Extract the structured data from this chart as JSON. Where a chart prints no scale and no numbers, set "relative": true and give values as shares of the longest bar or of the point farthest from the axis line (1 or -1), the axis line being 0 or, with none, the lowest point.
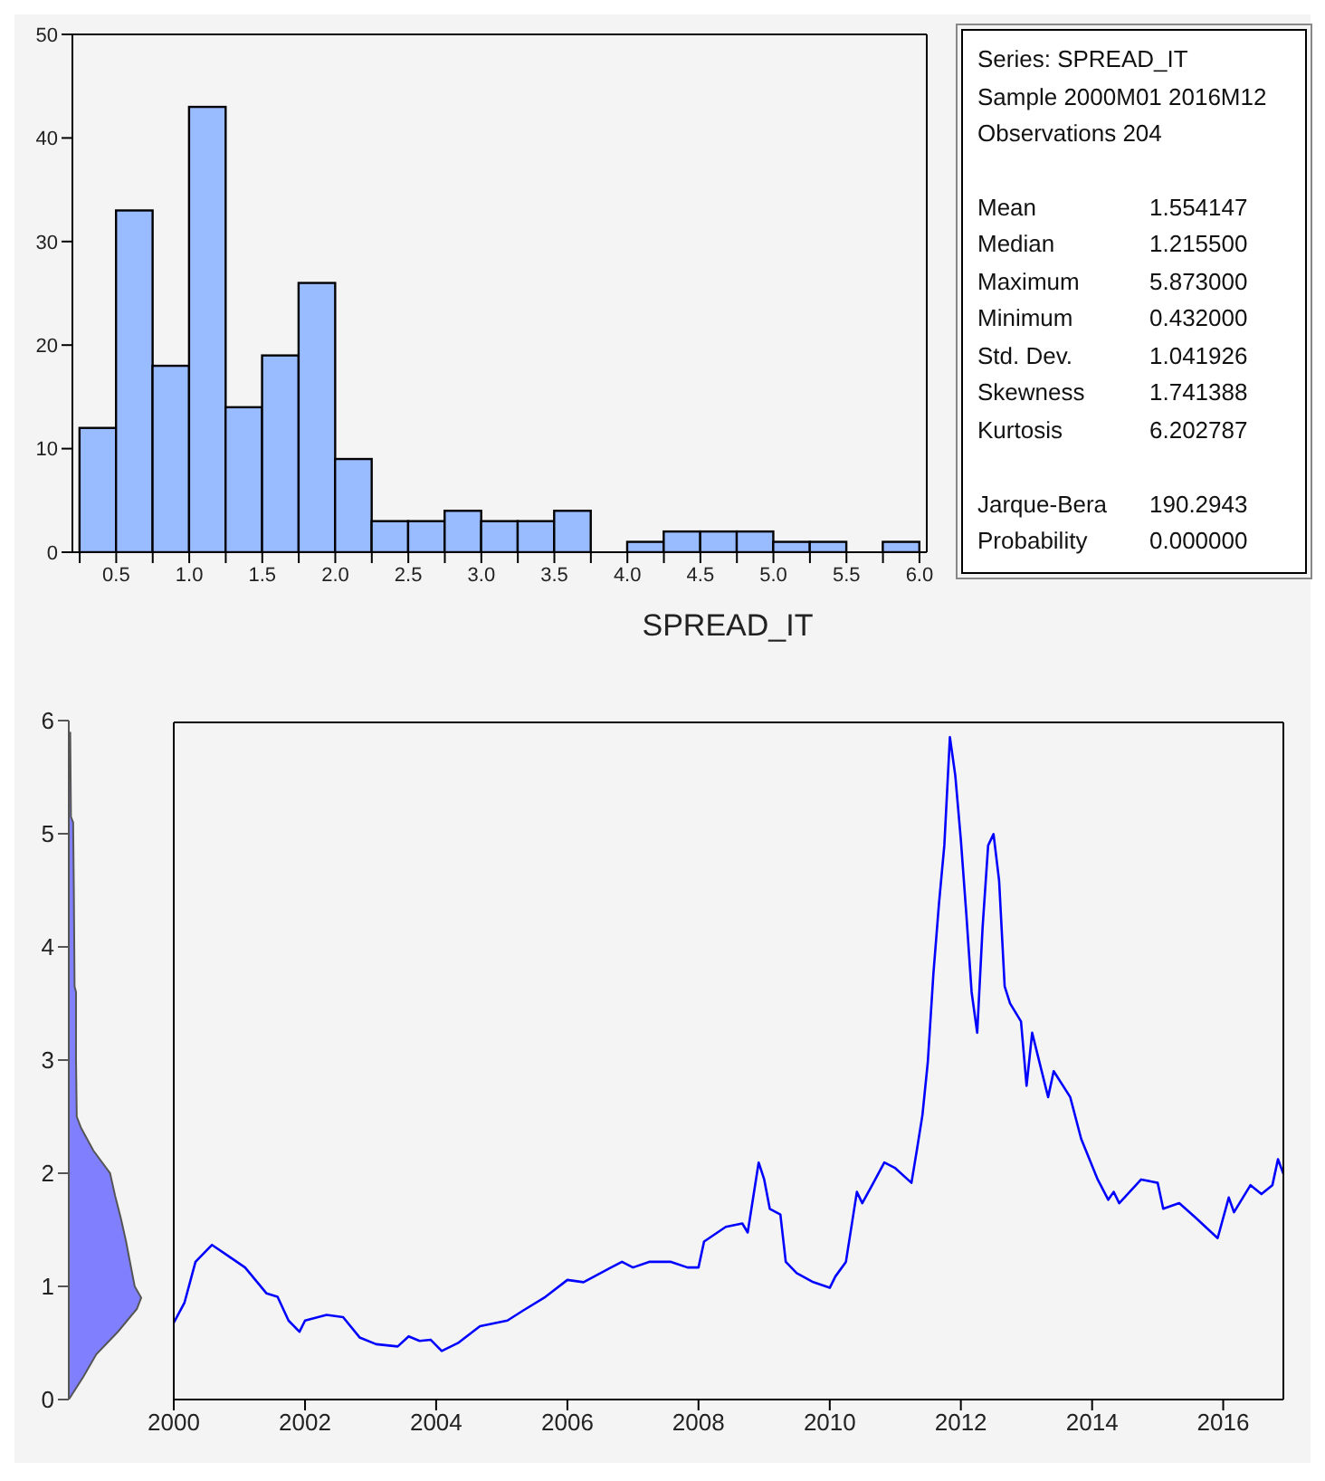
{
  "chart_data": [
    {
      "type": "histogram",
      "color": "#99bbff",
      "bins": [
        0.25,
        0.5,
        0.75,
        1.0,
        1.25,
        1.5,
        1.75,
        2.0,
        2.25,
        2.5,
        2.75,
        3.0,
        3.25,
        3.5,
        3.75,
        4.0,
        4.25,
        4.5,
        4.75,
        5.0,
        5.25,
        5.5,
        5.75,
        6.0
      ],
      "values": [
        12,
        33,
        18,
        43,
        14,
        19,
        26,
        9,
        3,
        3,
        4,
        3,
        3,
        4,
        0,
        1,
        2,
        2,
        2,
        1,
        1,
        0,
        1
      ],
      "xlim": [
        0.2,
        6.05
      ],
      "xticks": [
        {
          "value": 0.25,
          "label": null
        },
        {
          "value": 0.5,
          "label": "0.5"
        },
        {
          "value": 0.75,
          "label": null
        },
        {
          "value": 1.0,
          "label": "1.0"
        },
        {
          "value": 1.25,
          "label": null
        },
        {
          "value": 1.5,
          "label": "1.5"
        },
        {
          "value": 1.75,
          "label": null
        },
        {
          "value": 2.0,
          "label": "2.0"
        },
        {
          "value": 2.25,
          "label": null
        },
        {
          "value": 2.5,
          "label": "2.5"
        },
        {
          "value": 2.75,
          "label": null
        },
        {
          "value": 3.0,
          "label": "3.0"
        },
        {
          "value": 3.25,
          "label": null
        },
        {
          "value": 3.5,
          "label": "3.5"
        },
        {
          "value": 3.75,
          "label": null
        },
        {
          "value": 4.0,
          "label": "4.0"
        },
        {
          "value": 4.25,
          "label": null
        },
        {
          "value": 4.5,
          "label": "4.5"
        },
        {
          "value": 4.75,
          "label": null
        },
        {
          "value": 5.0,
          "label": "5.0"
        },
        {
          "value": 5.25,
          "label": null
        },
        {
          "value": 5.5,
          "label": "5.5"
        },
        {
          "value": 5.75,
          "label": null
        },
        {
          "value": 6.0,
          "label": "6.0"
        }
      ],
      "ylim": [
        0,
        50
      ],
      "yticks": [
        0,
        10,
        20,
        30,
        40,
        50
      ]
    },
    {
      "type": "other",
      "annotations": [
        "Series: SPREAD_IT",
        "Sample 2000M01 2016M12",
        "Observations 204"
      ],
      "categories": [
        "Mean",
        "Median",
        "Maximum",
        "Minimum",
        "Std. Dev.",
        "Skewness",
        "Kurtosis",
        null,
        "Jarque-Bera",
        "Probability"
      ],
      "values": [
        1.554147,
        1.2155,
        5.873,
        0.432,
        1.041926,
        1.741388,
        6.202787,
        null,
        190.2943,
        0
      ],
      "value_labels": [
        "1.554147",
        "1.215500",
        "5.873000",
        "0.432000",
        "1.041926",
        "1.741388",
        "6.202787",
        null,
        "190.2943",
        "0.000000"
      ]
    },
    {
      "type": "area",
      "orientation": "horizontal",
      "relative": true,
      "color": "#8080ff",
      "x": [
        0,
        0.2,
        0.4,
        0.6,
        0.8,
        0.9,
        1.0,
        1.2,
        1.4,
        1.6,
        1.8,
        2.0,
        2.2,
        2.4,
        2.5,
        3.0,
        3.6,
        3.65,
        4.5,
        5.1,
        5.15,
        5.9
      ],
      "values": [
        0,
        0.2,
        0.38,
        0.68,
        0.94,
        1,
        0.91,
        0.85,
        0.79,
        0.72,
        0.64,
        0.57,
        0.34,
        0.17,
        0.11,
        0.1,
        0.1,
        0.08,
        0.07,
        0.06,
        0.03,
        0.02
      ],
      "ylim": [
        0,
        6
      ],
      "yticks": [
        0,
        1,
        2,
        3,
        4,
        5,
        6
      ],
      "tick_labels": "y"
    },
    {
      "type": "line",
      "title": "SPREAD_IT",
      "color": "#0000ff",
      "x": [
        "2000-01",
        "2000-03",
        "2000-05",
        "2000-08",
        "2000-11",
        "2001-02",
        "2001-06",
        "2001-08",
        "2001-10",
        "2001-12",
        "2002-01",
        "2002-05",
        "2002-08",
        "2002-11",
        "2003-02",
        "2003-06",
        "2003-08",
        "2003-10",
        "2003-12",
        "2004-02",
        "2004-05",
        "2004-09",
        "2005-02",
        "2005-05",
        "2005-09",
        "2006-01",
        "2006-04",
        "2006-09",
        "2006-11",
        "2007-01",
        "2007-04",
        "2007-08",
        "2007-11",
        "2008-01",
        "2008-02",
        "2008-06",
        "2008-09",
        "2008-10",
        "2008-12",
        "2009-01",
        "2009-02",
        "2009-04",
        "2009-05",
        "2009-07",
        "2009-10",
        "2010-01",
        "2010-02",
        "2010-04",
        "2010-06",
        "2010-07",
        "2010-09",
        "2010-11",
        "2011-01",
        "2011-04",
        "2011-05",
        "2011-06",
        "2011-07",
        "2011-08",
        "2011-09",
        "2011-10",
        "2011-11",
        "2011-12",
        "2012-01",
        "2012-02",
        "2012-03",
        "2012-04",
        "2012-05",
        "2012-06",
        "2012-07",
        "2012-08",
        "2012-09",
        "2012-10",
        "2012-12",
        "2013-01",
        "2013-02",
        "2013-05",
        "2013-06",
        "2013-09",
        "2013-11",
        "2014-02",
        "2014-04",
        "2014-05",
        "2014-06",
        "2014-10",
        "2015-01",
        "2015-02",
        "2015-05",
        "2015-08",
        "2015-12",
        "2016-02",
        "2016-03",
        "2016-06",
        "2016-08",
        "2016-10",
        "2016-11",
        "2016-12"
      ],
      "values": [
        0.68,
        0.86,
        1.22,
        1.37,
        1.27,
        1.17,
        0.94,
        0.91,
        0.7,
        0.6,
        0.7,
        0.75,
        0.73,
        0.55,
        0.49,
        0.47,
        0.56,
        0.52,
        0.53,
        0.43,
        0.5,
        0.65,
        0.7,
        0.79,
        0.91,
        1.06,
        1.04,
        1.17,
        1.22,
        1.17,
        1.22,
        1.22,
        1.17,
        1.17,
        1.4,
        1.53,
        1.56,
        1.48,
        2.1,
        1.95,
        1.69,
        1.64,
        1.22,
        1.12,
        1.04,
        0.99,
        1.09,
        1.22,
        1.84,
        1.74,
        1.92,
        2.1,
        2.05,
        1.92,
        2.21,
        2.52,
        2.99,
        3.77,
        4.39,
        4.91,
        5.87,
        5.53,
        4.96,
        4.29,
        3.61,
        3.25,
        4.18,
        4.91,
        5.01,
        4.6,
        3.66,
        3.51,
        3.35,
        2.78,
        3.25,
        2.68,
        2.91,
        2.68,
        2.31,
        1.95,
        1.77,
        1.84,
        1.74,
        1.95,
        1.92,
        1.69,
        1.74,
        1.61,
        1.43,
        1.79,
        1.66,
        1.9,
        1.82,
        1.9,
        2.13,
        2.0
      ],
      "xlim": [
        "2000-01",
        "2016-12"
      ],
      "xticks": [
        "2000",
        "2002",
        "2004",
        "2006",
        "2008",
        "2010",
        "2012",
        "2014",
        "2016"
      ],
      "ylim": [
        0,
        6
      ],
      "tick_labels": "x"
    }
  ]
}
